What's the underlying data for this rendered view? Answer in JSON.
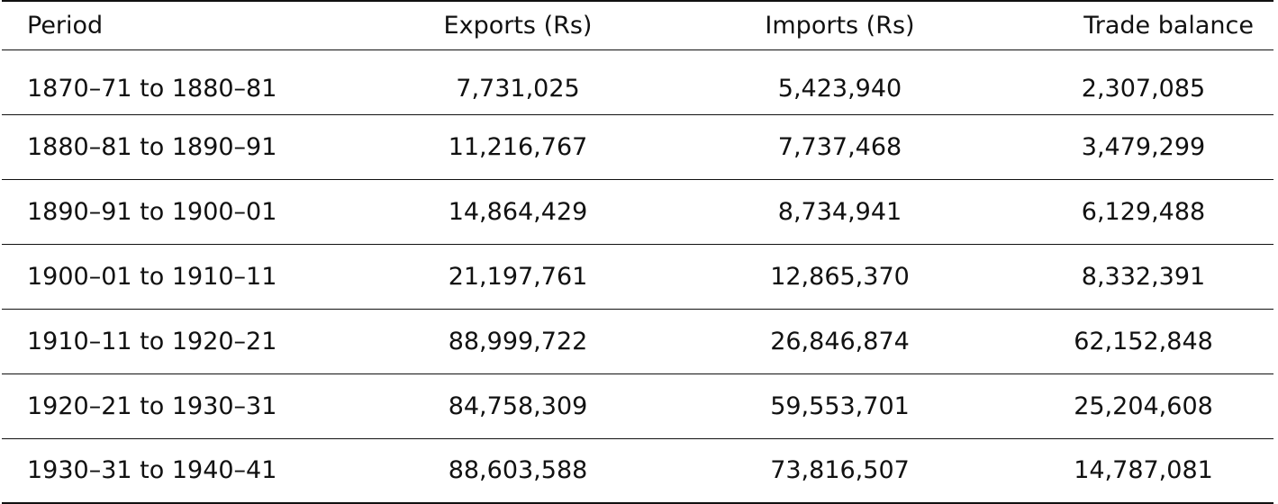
{
  "table": {
    "headers": {
      "period": "Period",
      "exports": "Exports (Rs)",
      "imports": "Imports (Rs)",
      "balance": "Trade balance"
    },
    "rows": [
      {
        "period": "1870–71 to 1880–81",
        "exports": "7,731,025",
        "imports": "5,423,940",
        "balance": "2,307,085"
      },
      {
        "period": "1880–81 to 1890–91",
        "exports": "11,216,767",
        "imports": "7,737,468",
        "balance": "3,479,299"
      },
      {
        "period": "1890–91 to 1900–01",
        "exports": "14,864,429",
        "imports": "8,734,941",
        "balance": "6,129,488"
      },
      {
        "period": "1900–01 to 1910–11",
        "exports": "21,197,761",
        "imports": "12,865,370",
        "balance": "8,332,391"
      },
      {
        "period": "1910–11 to 1920–21",
        "exports": "88,999,722",
        "imports": "26,846,874",
        "balance": "62,152,848"
      },
      {
        "period": "1920–21 to 1930–31",
        "exports": "84,758,309",
        "imports": "59,553,701",
        "balance": "25,204,608"
      },
      {
        "period": "1930–31 to 1940–41",
        "exports": "88,603,588",
        "imports": "73,816,507",
        "balance": "14,787,081"
      }
    ]
  }
}
